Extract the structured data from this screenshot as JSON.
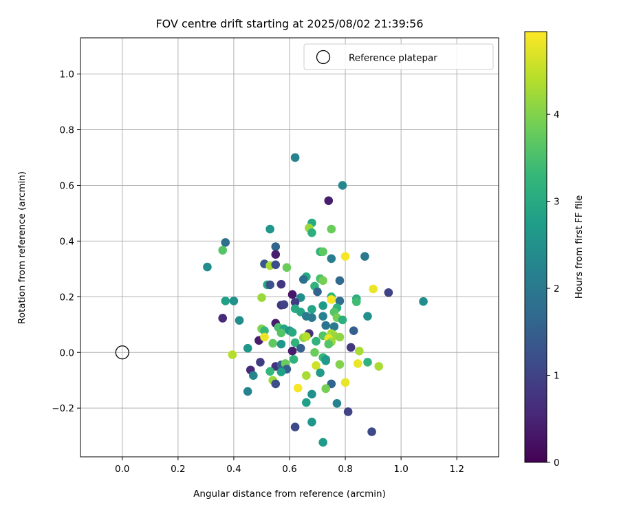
{
  "chart_data": {
    "type": "scatter",
    "title": "FOV centre drift starting at 2025/08/02 21:39:56",
    "xlabel": "Angular distance from reference (arcmin)",
    "ylabel": "Rotation from reference (arcmin)",
    "xlim": [
      -0.15,
      1.35
    ],
    "ylim": [
      -0.375,
      1.13
    ],
    "xticks": [
      0.0,
      0.2,
      0.4,
      0.6,
      0.8,
      1.0,
      1.2
    ],
    "xtick_labels": [
      "0.0",
      "0.2",
      "0.4",
      "0.6",
      "0.8",
      "1.0",
      "1.2"
    ],
    "yticks": [
      -0.2,
      0.0,
      0.2,
      0.4,
      0.6,
      0.8,
      1.0
    ],
    "ytick_labels": [
      "−0.2",
      "0.0",
      "0.2",
      "0.4",
      "0.6",
      "0.8",
      "1.0"
    ],
    "grid": true,
    "legend": {
      "position": "top-right",
      "entries": [
        {
          "label": "Reference platepar",
          "marker": "open-circle"
        }
      ]
    },
    "reference": {
      "x": 0.0,
      "y": 0.0
    },
    "colorbar": {
      "label": "Hours from first FF file",
      "range": [
        0,
        4.95
      ],
      "ticks": [
        0,
        1,
        2,
        3,
        4
      ],
      "tick_labels": [
        "0",
        "1",
        "2",
        "3",
        "4"
      ],
      "colormap": "viridis",
      "stops": [
        "#440154",
        "#482878",
        "#3e4989",
        "#31688e",
        "#26828e",
        "#1f9e89",
        "#35b779",
        "#6ece58",
        "#b5de2b",
        "#fde725"
      ]
    },
    "points": [
      {
        "x": 0.62,
        "y": 0.7,
        "c": 2.2
      },
      {
        "x": 0.79,
        "y": 0.6,
        "c": 2.3
      },
      {
        "x": 0.74,
        "y": 0.545,
        "c": 0.4
      },
      {
        "x": 0.68,
        "y": 0.465,
        "c": 3.0
      },
      {
        "x": 0.67,
        "y": 0.447,
        "c": 4.2
      },
      {
        "x": 0.75,
        "y": 0.443,
        "c": 3.8
      },
      {
        "x": 0.53,
        "y": 0.443,
        "c": 2.6
      },
      {
        "x": 0.68,
        "y": 0.43,
        "c": 3.1
      },
      {
        "x": 0.37,
        "y": 0.395,
        "c": 1.8
      },
      {
        "x": 0.55,
        "y": 0.38,
        "c": 1.6
      },
      {
        "x": 0.36,
        "y": 0.367,
        "c": 3.6
      },
      {
        "x": 0.71,
        "y": 0.362,
        "c": 3.2
      },
      {
        "x": 0.72,
        "y": 0.362,
        "c": 3.7
      },
      {
        "x": 0.55,
        "y": 0.352,
        "c": 0.4
      },
      {
        "x": 0.8,
        "y": 0.345,
        "c": 4.9
      },
      {
        "x": 0.87,
        "y": 0.345,
        "c": 2.0
      },
      {
        "x": 0.75,
        "y": 0.337,
        "c": 2.1
      },
      {
        "x": 0.51,
        "y": 0.318,
        "c": 1.4
      },
      {
        "x": 0.53,
        "y": 0.312,
        "c": 4.3
      },
      {
        "x": 0.55,
        "y": 0.315,
        "c": 1.2
      },
      {
        "x": 0.305,
        "y": 0.307,
        "c": 2.4
      },
      {
        "x": 0.59,
        "y": 0.305,
        "c": 3.8
      },
      {
        "x": 0.66,
        "y": 0.272,
        "c": 3.0
      },
      {
        "x": 0.65,
        "y": 0.262,
        "c": 1.8
      },
      {
        "x": 0.71,
        "y": 0.265,
        "c": 3.5
      },
      {
        "x": 0.72,
        "y": 0.258,
        "c": 3.9
      },
      {
        "x": 0.78,
        "y": 0.258,
        "c": 1.7
      },
      {
        "x": 0.52,
        "y": 0.243,
        "c": 3.0
      },
      {
        "x": 0.53,
        "y": 0.243,
        "c": 1.3
      },
      {
        "x": 0.57,
        "y": 0.245,
        "c": 0.8
      },
      {
        "x": 0.69,
        "y": 0.238,
        "c": 3.2
      },
      {
        "x": 0.9,
        "y": 0.228,
        "c": 4.8
      },
      {
        "x": 0.955,
        "y": 0.215,
        "c": 1.0
      },
      {
        "x": 0.7,
        "y": 0.218,
        "c": 1.6
      },
      {
        "x": 0.61,
        "y": 0.208,
        "c": 0.3
      },
      {
        "x": 0.5,
        "y": 0.197,
        "c": 4.2
      },
      {
        "x": 0.64,
        "y": 0.197,
        "c": 2.4
      },
      {
        "x": 0.75,
        "y": 0.2,
        "c": 3.3
      },
      {
        "x": 0.75,
        "y": 0.19,
        "c": 4.9
      },
      {
        "x": 0.84,
        "y": 0.193,
        "c": 3.1
      },
      {
        "x": 0.84,
        "y": 0.182,
        "c": 3.4
      },
      {
        "x": 0.37,
        "y": 0.185,
        "c": 2.8
      },
      {
        "x": 0.4,
        "y": 0.185,
        "c": 2.5
      },
      {
        "x": 1.08,
        "y": 0.183,
        "c": 2.4
      },
      {
        "x": 0.78,
        "y": 0.185,
        "c": 1.8
      },
      {
        "x": 0.57,
        "y": 0.17,
        "c": 0.8
      },
      {
        "x": 0.58,
        "y": 0.172,
        "c": 1.0
      },
      {
        "x": 0.62,
        "y": 0.18,
        "c": 0.9
      },
      {
        "x": 0.62,
        "y": 0.157,
        "c": 3.0
      },
      {
        "x": 0.68,
        "y": 0.155,
        "c": 2.9
      },
      {
        "x": 0.72,
        "y": 0.168,
        "c": 2.7
      },
      {
        "x": 0.77,
        "y": 0.16,
        "c": 3.2
      },
      {
        "x": 0.76,
        "y": 0.145,
        "c": 3.6
      },
      {
        "x": 0.64,
        "y": 0.145,
        "c": 2.9
      },
      {
        "x": 0.88,
        "y": 0.13,
        "c": 2.5
      },
      {
        "x": 0.36,
        "y": 0.123,
        "c": 0.6
      },
      {
        "x": 0.42,
        "y": 0.115,
        "c": 2.4
      },
      {
        "x": 0.66,
        "y": 0.13,
        "c": 2.0
      },
      {
        "x": 0.68,
        "y": 0.125,
        "c": 2.0
      },
      {
        "x": 0.72,
        "y": 0.13,
        "c": 2.2
      },
      {
        "x": 0.77,
        "y": 0.125,
        "c": 3.9
      },
      {
        "x": 0.79,
        "y": 0.117,
        "c": 3.1
      },
      {
        "x": 0.55,
        "y": 0.105,
        "c": 0.4
      },
      {
        "x": 0.56,
        "y": 0.09,
        "c": 3.5
      },
      {
        "x": 0.58,
        "y": 0.085,
        "c": 2.9
      },
      {
        "x": 0.73,
        "y": 0.097,
        "c": 1.9
      },
      {
        "x": 0.76,
        "y": 0.093,
        "c": 2.0
      },
      {
        "x": 0.5,
        "y": 0.085,
        "c": 4.0
      },
      {
        "x": 0.51,
        "y": 0.078,
        "c": 3.3
      },
      {
        "x": 0.57,
        "y": 0.07,
        "c": 3.6
      },
      {
        "x": 0.6,
        "y": 0.078,
        "c": 2.6
      },
      {
        "x": 0.61,
        "y": 0.072,
        "c": 3.0
      },
      {
        "x": 0.67,
        "y": 0.068,
        "c": 0.7
      },
      {
        "x": 0.75,
        "y": 0.068,
        "c": 4.3
      },
      {
        "x": 0.76,
        "y": 0.06,
        "c": 4.2
      },
      {
        "x": 0.83,
        "y": 0.078,
        "c": 1.5
      },
      {
        "x": 0.72,
        "y": 0.06,
        "c": 3.6
      },
      {
        "x": 0.65,
        "y": 0.053,
        "c": 4.1
      },
      {
        "x": 0.66,
        "y": 0.057,
        "c": 4.4
      },
      {
        "x": 0.74,
        "y": 0.05,
        "c": 4.8
      },
      {
        "x": 0.78,
        "y": 0.055,
        "c": 4.1
      },
      {
        "x": 0.49,
        "y": 0.043,
        "c": 0.4
      },
      {
        "x": 0.51,
        "y": 0.055,
        "c": 4.8
      },
      {
        "x": 0.54,
        "y": 0.033,
        "c": 3.7
      },
      {
        "x": 0.57,
        "y": 0.03,
        "c": 2.6
      },
      {
        "x": 0.62,
        "y": 0.035,
        "c": 3.2
      },
      {
        "x": 0.64,
        "y": 0.015,
        "c": 1.5
      },
      {
        "x": 0.695,
        "y": 0.04,
        "c": 3.2
      },
      {
        "x": 0.75,
        "y": 0.038,
        "c": 4.2
      },
      {
        "x": 0.74,
        "y": 0.03,
        "c": 3.6
      },
      {
        "x": 0.45,
        "y": 0.015,
        "c": 2.6
      },
      {
        "x": 0.61,
        "y": 0.005,
        "c": 0.4
      },
      {
        "x": 0.82,
        "y": 0.018,
        "c": 0.8
      },
      {
        "x": 0.85,
        "y": 0.005,
        "c": 4.3
      },
      {
        "x": 0.395,
        "y": -0.008,
        "c": 4.4
      },
      {
        "x": 0.69,
        "y": 0.0,
        "c": 3.8
      },
      {
        "x": 0.72,
        "y": -0.018,
        "c": 3.3
      },
      {
        "x": 0.73,
        "y": -0.025,
        "c": 2.6
      },
      {
        "x": 0.73,
        "y": -0.03,
        "c": 2.7
      },
      {
        "x": 0.615,
        "y": -0.025,
        "c": 3.2
      },
      {
        "x": 0.495,
        "y": -0.035,
        "c": 0.9
      },
      {
        "x": 0.55,
        "y": -0.05,
        "c": 0.7
      },
      {
        "x": 0.57,
        "y": -0.045,
        "c": 1.6
      },
      {
        "x": 0.585,
        "y": -0.04,
        "c": 3.8
      },
      {
        "x": 0.59,
        "y": -0.06,
        "c": 1.5
      },
      {
        "x": 0.695,
        "y": -0.047,
        "c": 4.6
      },
      {
        "x": 0.78,
        "y": -0.043,
        "c": 4.0
      },
      {
        "x": 0.845,
        "y": -0.04,
        "c": 4.8
      },
      {
        "x": 0.88,
        "y": -0.035,
        "c": 3.2
      },
      {
        "x": 0.92,
        "y": -0.05,
        "c": 4.3
      },
      {
        "x": 0.46,
        "y": -0.063,
        "c": 0.6
      },
      {
        "x": 0.53,
        "y": -0.068,
        "c": 3.3
      },
      {
        "x": 0.57,
        "y": -0.07,
        "c": 2.8
      },
      {
        "x": 0.71,
        "y": -0.073,
        "c": 2.7
      },
      {
        "x": 0.47,
        "y": -0.083,
        "c": 2.3
      },
      {
        "x": 0.66,
        "y": -0.083,
        "c": 4.3
      },
      {
        "x": 0.54,
        "y": -0.1,
        "c": 4.2
      },
      {
        "x": 0.55,
        "y": -0.113,
        "c": 1.2
      },
      {
        "x": 0.75,
        "y": -0.113,
        "c": 1.6
      },
      {
        "x": 0.8,
        "y": -0.108,
        "c": 4.8
      },
      {
        "x": 0.63,
        "y": -0.128,
        "c": 4.9
      },
      {
        "x": 0.73,
        "y": -0.13,
        "c": 3.9
      },
      {
        "x": 0.45,
        "y": -0.14,
        "c": 2.2
      },
      {
        "x": 0.68,
        "y": -0.15,
        "c": 2.5
      },
      {
        "x": 0.66,
        "y": -0.18,
        "c": 2.8
      },
      {
        "x": 0.77,
        "y": -0.183,
        "c": 2.2
      },
      {
        "x": 0.81,
        "y": -0.213,
        "c": 1.0
      },
      {
        "x": 0.68,
        "y": -0.25,
        "c": 2.6
      },
      {
        "x": 0.62,
        "y": -0.268,
        "c": 1.1
      },
      {
        "x": 0.895,
        "y": -0.285,
        "c": 1.1
      },
      {
        "x": 0.72,
        "y": -0.323,
        "c": 2.7
      }
    ]
  }
}
